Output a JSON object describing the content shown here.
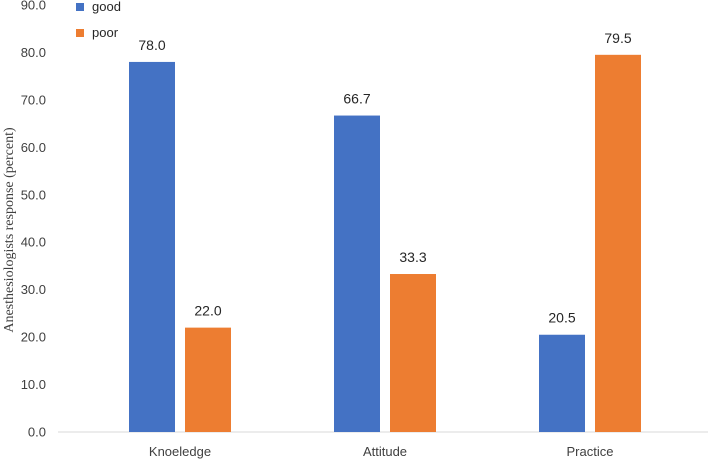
{
  "chart_data": {
    "type": "bar",
    "categories": [
      "Knoeledge",
      "Attitude",
      "Practice"
    ],
    "series": [
      {
        "name": "good",
        "values": [
          78.0,
          66.7,
          20.5
        ],
        "color": "#4472C4"
      },
      {
        "name": "poor",
        "values": [
          22.0,
          33.3,
          79.5
        ],
        "color": "#ED7D31"
      }
    ],
    "ylabel": "Anesthesiologists response  (percent)",
    "ylim": [
      0,
      90
    ],
    "yticks": [
      "0.0",
      "10.0",
      "20.0",
      "30.0",
      "40.0",
      "50.0",
      "60.0",
      "70.0",
      "80.0",
      "90.0"
    ],
    "data_labels": [
      [
        "78.0",
        "66.7",
        "20.5"
      ],
      [
        "22.0",
        "33.3",
        "79.5"
      ]
    ],
    "legend_placement": "top-left",
    "grid": false
  }
}
